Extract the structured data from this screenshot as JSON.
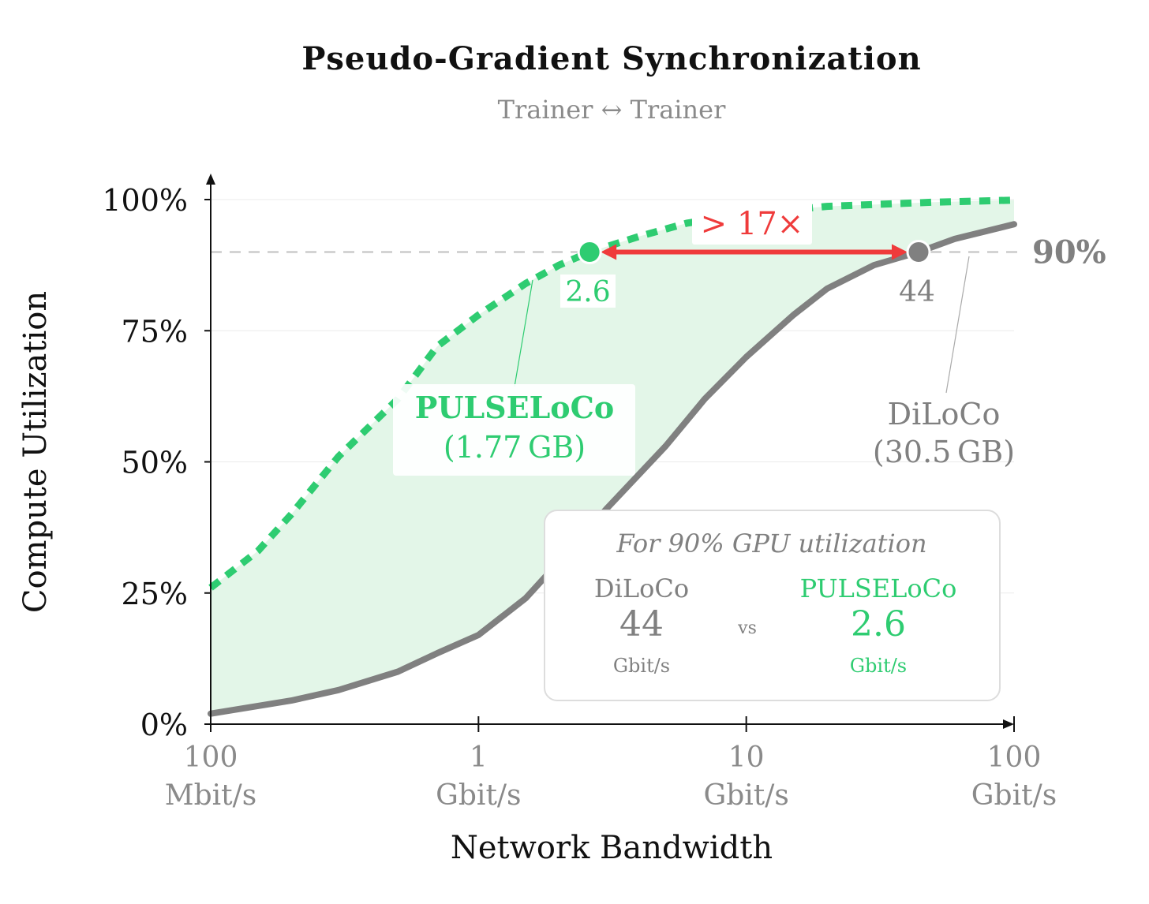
{
  "chart_data": {
    "type": "line",
    "title": "Pseudo-Gradient Synchronization",
    "subtitle": "Trainer ↔ Trainer",
    "xlabel": "Network Bandwidth",
    "ylabel": "Compute Utilization",
    "x_scale": "log",
    "x_unit": "Gbit/s",
    "xlim": [
      0.1,
      100
    ],
    "ylim": [
      0,
      100
    ],
    "x_ticks": [
      {
        "value": 0.1,
        "line1": "100",
        "line2": "Mbit/s"
      },
      {
        "value": 1,
        "line1": "1",
        "line2": "Gbit/s"
      },
      {
        "value": 10,
        "line1": "10",
        "line2": "Gbit/s"
      },
      {
        "value": 100,
        "line1": "100",
        "line2": "Gbit/s"
      }
    ],
    "y_ticks": [
      {
        "value": 0,
        "label": "0%"
      },
      {
        "value": 25,
        "label": "25%"
      },
      {
        "value": 50,
        "label": "50%"
      },
      {
        "value": 75,
        "label": "75%"
      },
      {
        "value": 100,
        "label": "100%"
      }
    ],
    "grid": true,
    "reference_line": {
      "y": 90,
      "label": "90%",
      "color": "#cccccc"
    },
    "series": [
      {
        "name": "PULSELoCo",
        "size_label": "(1.77 GB)",
        "color": "#2ecc71",
        "style": "dashed",
        "points": [
          [
            0.1,
            26
          ],
          [
            0.15,
            33
          ],
          [
            0.2,
            40
          ],
          [
            0.3,
            51
          ],
          [
            0.5,
            62
          ],
          [
            0.7,
            72
          ],
          [
            1,
            78
          ],
          [
            1.5,
            84
          ],
          [
            2,
            87.5
          ],
          [
            2.6,
            90
          ],
          [
            4,
            93
          ],
          [
            6,
            95.5
          ],
          [
            10,
            97.3
          ],
          [
            20,
            98.7
          ],
          [
            50,
            99.5
          ],
          [
            100,
            99.9
          ]
        ]
      },
      {
        "name": "DiLoCo",
        "size_label": "(30.5 GB)",
        "color": "#808080",
        "style": "solid",
        "points": [
          [
            0.1,
            2
          ],
          [
            0.2,
            4.5
          ],
          [
            0.3,
            6.5
          ],
          [
            0.5,
            10
          ],
          [
            0.7,
            13.5
          ],
          [
            1,
            17
          ],
          [
            1.5,
            24
          ],
          [
            2,
            31
          ],
          [
            3,
            41
          ],
          [
            5,
            53
          ],
          [
            7,
            62
          ],
          [
            10,
            70
          ],
          [
            15,
            78
          ],
          [
            20,
            83
          ],
          [
            30,
            87.5
          ],
          [
            44,
            90
          ],
          [
            60,
            92.5
          ],
          [
            100,
            95.3
          ]
        ]
      }
    ],
    "shaded_region": {
      "between": [
        "PULSELoCo",
        "DiLoCo"
      ],
      "color": "#e3f6e8"
    },
    "markers": [
      {
        "series": "PULSELoCo",
        "x": 2.6,
        "y": 90,
        "label": "2.6",
        "color": "#2ecc71"
      },
      {
        "series": "DiLoCo",
        "x": 44,
        "y": 90,
        "label": "44",
        "color": "#808080"
      }
    ],
    "annotation": {
      "text": "> 17×",
      "color": "#ef3b3b",
      "from_x": 2.6,
      "to_x": 44,
      "y": 90
    },
    "info_box": {
      "heading": "For 90% GPU utilization",
      "left_name": "DiLoCo",
      "left_value": "44",
      "left_unit": "Gbit/s",
      "vs": "vs",
      "right_name": "PULSELoCo",
      "right_value": "2.6",
      "right_unit": "Gbit/s"
    }
  }
}
